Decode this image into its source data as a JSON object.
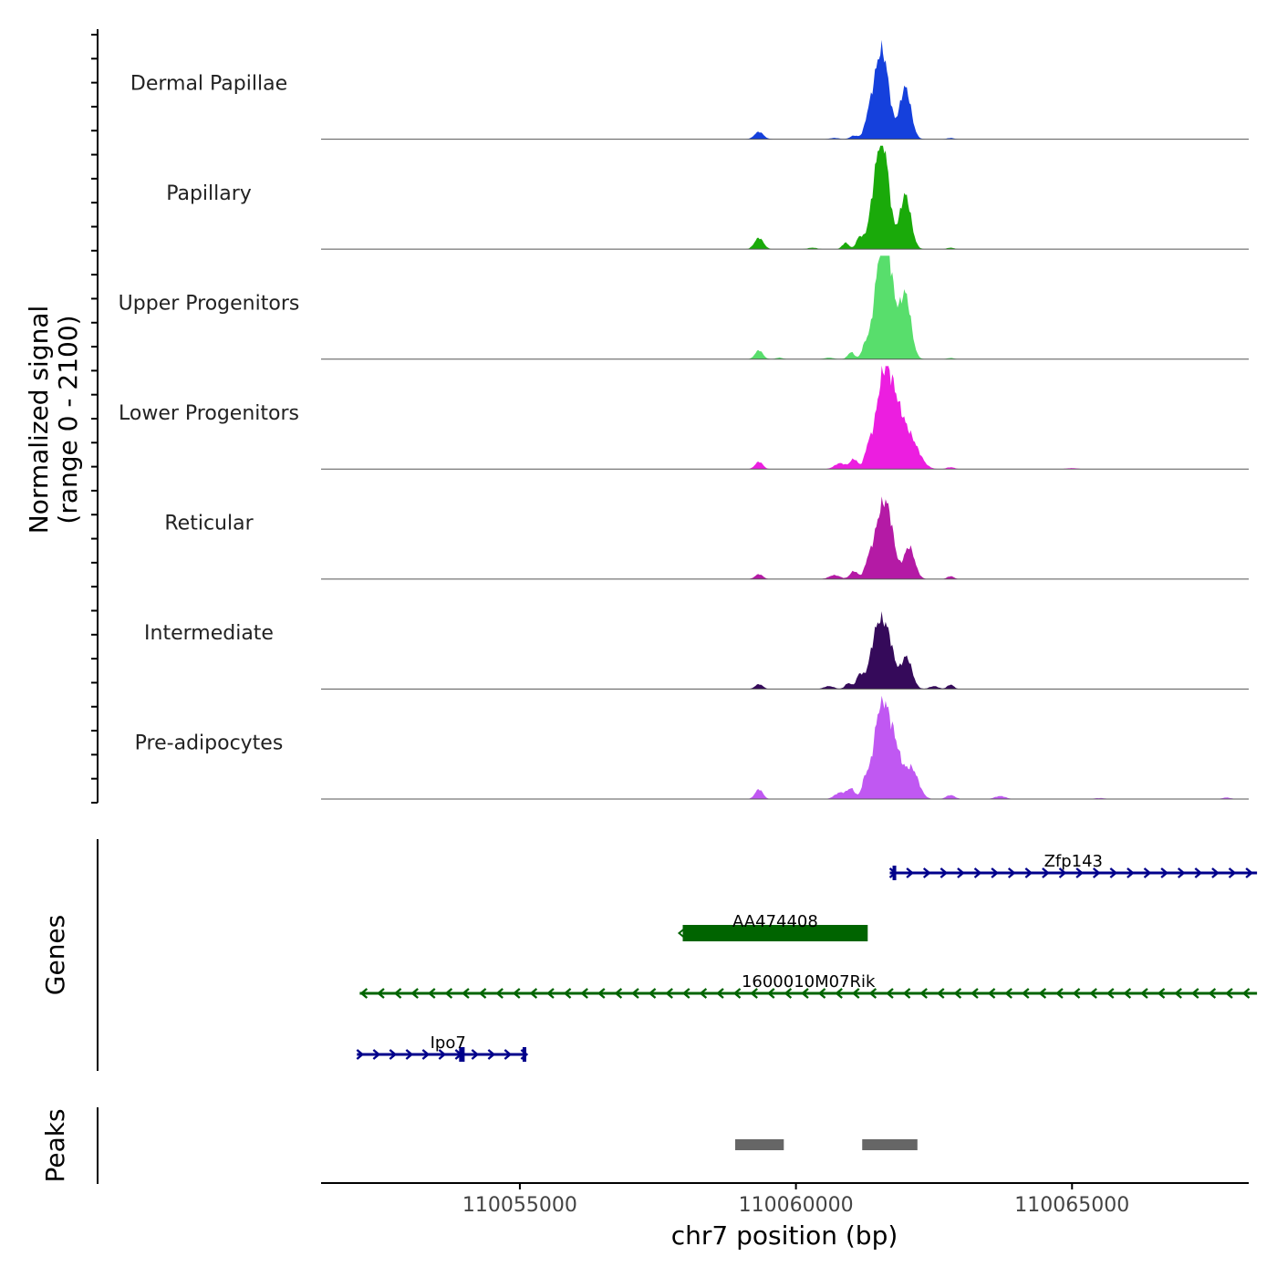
{
  "chart_data": {
    "type": "area",
    "chromosome": "chr7",
    "x_range": [
      110051400,
      110068200
    ],
    "xlabel": "chr7 position (bp)",
    "x_ticks": [
      {
        "value": 110055000,
        "label": "110055000"
      },
      {
        "value": 110060000,
        "label": "110060000"
      },
      {
        "value": 110065000,
        "label": "110065000"
      }
    ],
    "ylabel_line1": "Normalized signal",
    "ylabel_line2": "(range 0 - 2100)",
    "y_range": [
      0,
      2100
    ],
    "tracks": [
      {
        "name": "Dermal Papillae",
        "color": "#1540dc",
        "peaks": [
          [
            110059330,
            150,
            80
          ],
          [
            110060700,
            25,
            80
          ],
          [
            110061050,
            70,
            70
          ],
          [
            110061300,
            180,
            60
          ],
          [
            110061500,
            1350,
            130
          ],
          [
            110061620,
            700,
            100
          ],
          [
            110061980,
            1050,
            100
          ],
          [
            110062800,
            25,
            60
          ]
        ]
      },
      {
        "name": "Papillary",
        "color": "#1aaa0a",
        "peaks": [
          [
            110059330,
            230,
            80
          ],
          [
            110060300,
            30,
            80
          ],
          [
            110060900,
            130,
            60
          ],
          [
            110061150,
            220,
            60
          ],
          [
            110061500,
            1650,
            130
          ],
          [
            110061620,
            900,
            100
          ],
          [
            110061980,
            1100,
            100
          ],
          [
            110062800,
            30,
            60
          ]
        ]
      },
      {
        "name": "Upper Progenitors",
        "color": "#58de6c",
        "peaks": [
          [
            110059330,
            180,
            70
          ],
          [
            110059700,
            30,
            60
          ],
          [
            110060600,
            30,
            80
          ],
          [
            110061000,
            140,
            60
          ],
          [
            110061250,
            220,
            60
          ],
          [
            110061550,
            2050,
            130
          ],
          [
            110061700,
            1000,
            110
          ],
          [
            110061980,
            1300,
            100
          ],
          [
            110062800,
            25,
            60
          ]
        ]
      },
      {
        "name": "Lower Progenitors",
        "color": "#ec1ee0",
        "peaks": [
          [
            110059330,
            150,
            70
          ],
          [
            110060800,
            120,
            100
          ],
          [
            110061050,
            200,
            70
          ],
          [
            110061300,
            280,
            60
          ],
          [
            110061600,
            1900,
            150
          ],
          [
            110061850,
            800,
            140
          ],
          [
            110062100,
            500,
            150
          ],
          [
            110062800,
            40,
            70
          ],
          [
            110065000,
            20,
            100
          ]
        ]
      },
      {
        "name": "Reticular",
        "color": "#b41aa5",
        "peaks": [
          [
            110059330,
            100,
            70
          ],
          [
            110060700,
            80,
            100
          ],
          [
            110061050,
            160,
            70
          ],
          [
            110061300,
            200,
            60
          ],
          [
            110061550,
            1300,
            140
          ],
          [
            110061700,
            600,
            100
          ],
          [
            110062050,
            650,
            100
          ],
          [
            110062800,
            60,
            60
          ]
        ]
      },
      {
        "name": "Intermediate",
        "color": "#350a5a",
        "peaks": [
          [
            110059330,
            100,
            70
          ],
          [
            110060600,
            60,
            90
          ],
          [
            110060950,
            120,
            60
          ],
          [
            110061150,
            260,
            60
          ],
          [
            110061500,
            1300,
            140
          ],
          [
            110061700,
            600,
            100
          ],
          [
            110062000,
            650,
            100
          ],
          [
            110062500,
            60,
            80
          ],
          [
            110062800,
            90,
            60
          ]
        ]
      },
      {
        "name": "Pre-adipocytes",
        "color": "#c058f2",
        "peaks": [
          [
            110059330,
            200,
            70
          ],
          [
            110060800,
            130,
            100
          ],
          [
            110061000,
            200,
            70
          ],
          [
            110061250,
            300,
            60
          ],
          [
            110061550,
            1900,
            140
          ],
          [
            110061800,
            850,
            120
          ],
          [
            110062100,
            600,
            120
          ],
          [
            110062800,
            80,
            80
          ],
          [
            110063700,
            60,
            100
          ],
          [
            110065500,
            20,
            100
          ],
          [
            110067800,
            30,
            80
          ]
        ]
      }
    ],
    "genes_label": "Genes",
    "genes": [
      {
        "name": "Zfp143",
        "start": 110061700,
        "end": 110068350,
        "strand": "+",
        "color": "#00008b",
        "row": 0,
        "exon": [
          110061750,
          110061800
        ]
      },
      {
        "name": "AA474408",
        "start": 110057950,
        "end": 110061300,
        "strand": "-",
        "color": "#006400",
        "row": 1,
        "block": true
      },
      {
        "name": "1600010M07Rik",
        "start": 110052100,
        "end": 110068350,
        "strand": "-",
        "color": "#006400",
        "row": 2
      },
      {
        "name": "Ipo7",
        "start": 110052050,
        "end": 110055100,
        "strand": "+",
        "color": "#00008b",
        "row": 3,
        "exon": [
          110053900,
          110054000
        ],
        "exon_end": [
          110055050,
          110055100
        ]
      }
    ],
    "peaks_label": "Peaks",
    "peak_regions": [
      [
        110058900,
        110059780
      ],
      [
        110061200,
        110062200
      ]
    ]
  }
}
